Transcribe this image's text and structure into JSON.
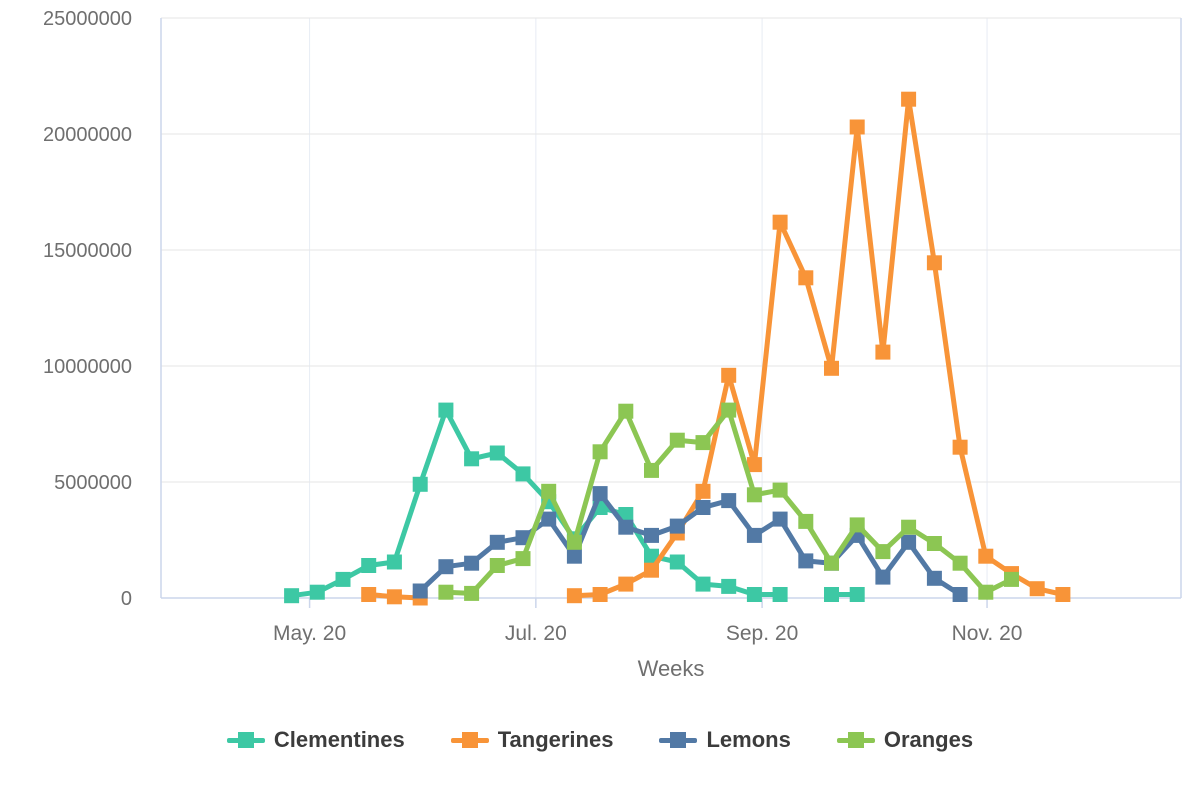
{
  "chart_data": {
    "type": "line",
    "title": "",
    "xlabel": "Weeks",
    "ylabel": "",
    "ylim": [
      0,
      25000000
    ],
    "y_ticks": [
      0,
      5000000,
      10000000,
      15000000,
      20000000,
      25000000
    ],
    "x_ticks": [
      {
        "label": "May. 20",
        "week": 0.7
      },
      {
        "label": "Jul. 20",
        "week": 9.5
      },
      {
        "label": "Sep. 20",
        "week": 18.3
      },
      {
        "label": "Nov. 20",
        "week": 27.05
      }
    ],
    "weeks_total": 31,
    "grid": true,
    "legend_position": "bottom",
    "marker_shape": "square",
    "colors": {
      "axis_line": "#ccd6eb",
      "gridline": "#e6e6e6",
      "vertical_gridline": "#e7ecf4",
      "tick_label": "#6f6f6f",
      "axis_title": "#6f6f6f",
      "legend_text": "#3c3c3c"
    },
    "series": [
      {
        "name": "Clementines",
        "color": "#3dc8a4",
        "values": [
          100000,
          250000,
          800000,
          1400000,
          1550000,
          4900000,
          8100000,
          6000000,
          6250000,
          5350000,
          4150000,
          2550000,
          3900000,
          3600000,
          1800000,
          1550000,
          600000,
          500000,
          150000,
          150000,
          null,
          150000,
          150000,
          null,
          null,
          null,
          null,
          null,
          null,
          null,
          null
        ]
      },
      {
        "name": "Tangerines",
        "color": "#f89438",
        "values": [
          null,
          null,
          null,
          150000,
          50000,
          0,
          null,
          null,
          null,
          null,
          null,
          100000,
          150000,
          600000,
          1200000,
          2800000,
          4600000,
          9600000,
          5750000,
          16200000,
          13800000,
          9900000,
          20300000,
          10600000,
          21500000,
          14450000,
          6500000,
          1800000,
          1050000,
          400000,
          150000
        ]
      },
      {
        "name": "Lemons",
        "color": "#5279a5",
        "values": [
          null,
          null,
          null,
          null,
          null,
          300000,
          1350000,
          1500000,
          2400000,
          2600000,
          3400000,
          1800000,
          4500000,
          3050000,
          2700000,
          3100000,
          3900000,
          4200000,
          2700000,
          3400000,
          1600000,
          1500000,
          2700000,
          900000,
          2400000,
          850000,
          150000,
          null,
          null,
          null,
          null
        ]
      },
      {
        "name": "Oranges",
        "color": "#8cc653",
        "values": [
          null,
          null,
          null,
          null,
          null,
          null,
          250000,
          200000,
          1400000,
          1700000,
          4600000,
          2400000,
          6300000,
          8050000,
          5500000,
          6800000,
          6700000,
          8100000,
          4450000,
          4650000,
          3300000,
          1500000,
          3150000,
          2000000,
          3050000,
          2350000,
          1500000,
          250000,
          800000,
          null,
          null
        ]
      }
    ]
  }
}
